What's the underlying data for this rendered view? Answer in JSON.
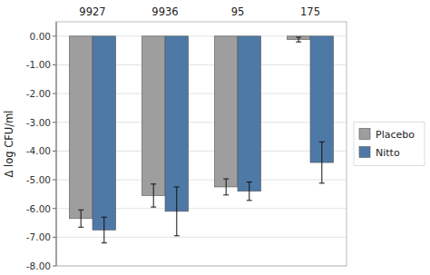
{
  "chart_data": {
    "type": "bar",
    "ylabel": "Δ log CFU/ml",
    "categories": [
      "9927",
      "9936",
      "95",
      "175"
    ],
    "series": [
      {
        "name": "Placebo",
        "color": "#9e9e9e",
        "values": [
          -6.35,
          -5.55,
          -5.25,
          -0.12
        ],
        "errors": [
          0.3,
          0.4,
          0.28,
          0.08
        ]
      },
      {
        "name": "Nitto",
        "color": "#4e79a7",
        "values": [
          -6.75,
          -6.1,
          -5.4,
          -4.4
        ],
        "errors": [
          0.45,
          0.85,
          0.32,
          0.72
        ]
      }
    ],
    "ylim": [
      -8.0,
      0.5
    ],
    "yticks": [
      {
        "value": 0.0,
        "label": "0.00"
      },
      {
        "value": -1.0,
        "label": "-1.00"
      },
      {
        "value": -2.0,
        "label": "-2.00"
      },
      {
        "value": -3.0,
        "label": "-3.00"
      },
      {
        "value": -4.0,
        "label": "-4.00"
      },
      {
        "value": -5.0,
        "label": "-5.00"
      },
      {
        "value": -6.0,
        "label": "-6.00"
      },
      {
        "value": -7.0,
        "label": "-7.00"
      },
      {
        "value": -8.0,
        "label": "-8.00"
      }
    ],
    "grid": true,
    "legend": "right"
  }
}
